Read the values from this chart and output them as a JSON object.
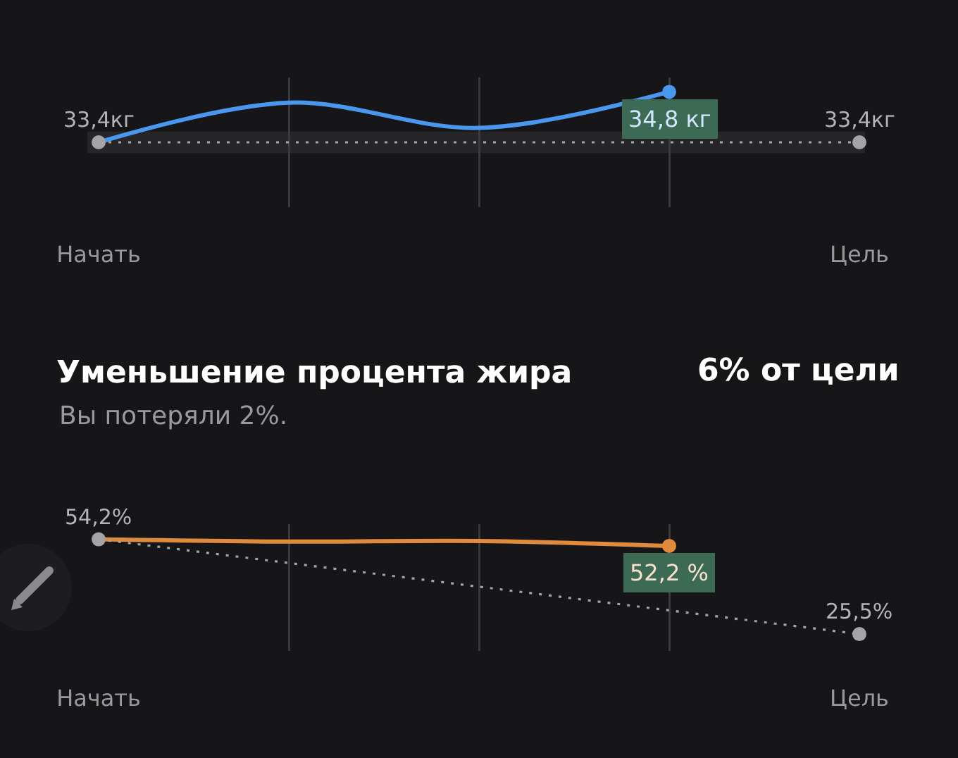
{
  "chart_data": [
    {
      "type": "line",
      "categories": [
        "Начать",
        null,
        null,
        null,
        "Цель"
      ],
      "series": [
        {
          "color": "#4a97ef",
          "values": [
            33.4,
            34.5,
            33.8,
            34.8,
            null
          ],
          "marker": "none"
        },
        {
          "color": "#a4a4a6",
          "values": [
            33.4,
            null,
            null,
            null,
            33.4
          ],
          "line_style": "dotted",
          "marker": "circle",
          "value_labels": [
            "33,4кг",
            null,
            null,
            null,
            "33,4кг"
          ]
        },
        {
          "type": "scatter",
          "color": "#4a97ef",
          "values": [
            null,
            null,
            null,
            34.8,
            null
          ],
          "marker": "circle",
          "value_labels": [
            null,
            null,
            null,
            "34,8 кг",
            null
          ]
        }
      ],
      "ylim": [
        31.6,
        35.2
      ],
      "bands": [
        {
          "axis": "y",
          "from": 33.1,
          "to": 33.7,
          "color": "#262628"
        }
      ],
      "grid": "x",
      "tick_labels": "x",
      "line_style": "solid"
    },
    {
      "type": "line",
      "title": "Уменьшение процента жира",
      "subtitle": "Вы потеряли 2%.",
      "annotations": [
        "6% от цели"
      ],
      "categories": [
        "Начать",
        null,
        null,
        null,
        "Цель"
      ],
      "series": [
        {
          "color": "#e08a3e",
          "values": [
            54.2,
            53.5,
            53.7,
            52.2,
            null
          ],
          "marker": "none"
        },
        {
          "color": "#a4a4a6",
          "values": [
            54.2,
            null,
            null,
            null,
            25.5
          ],
          "line_style": "dotted",
          "marker": "circle",
          "value_labels": [
            "54,2%",
            null,
            null,
            null,
            "25,5%"
          ]
        },
        {
          "type": "scatter",
          "color": "#e08a3e",
          "values": [
            null,
            null,
            null,
            52.2,
            null
          ],
          "marker": "circle",
          "value_labels": [
            null,
            null,
            null,
            "52,2 %",
            null
          ]
        }
      ],
      "ylim": [
        20.4,
        58.8
      ],
      "grid": "x",
      "tick_labels": "x",
      "line_style": "solid"
    }
  ]
}
